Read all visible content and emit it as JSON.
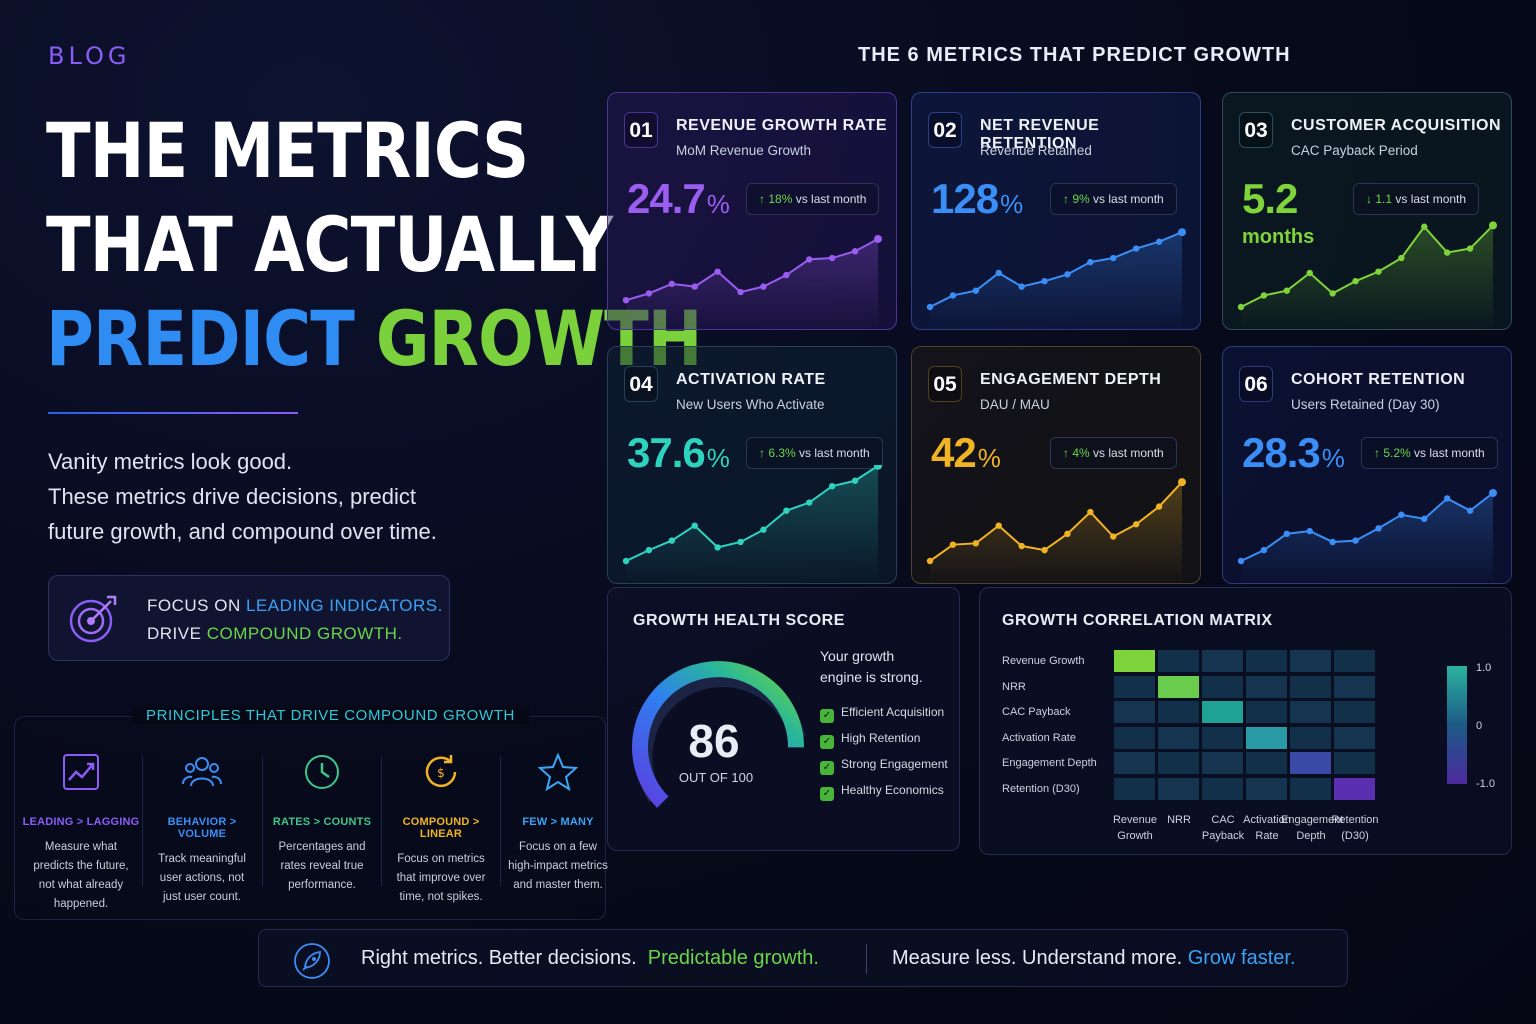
{
  "blog_label": "BLOG",
  "hero": {
    "line1": "THE METRICS",
    "line2": "THAT ACTUALLY",
    "line3a": "PREDICT",
    "line3b": "GROWTH"
  },
  "intro": {
    "line1": "Vanity metrics look good.",
    "line2": "These metrics drive decisions, predict",
    "line3": "future growth, and compound over time."
  },
  "focus": {
    "a1": "FOCUS ON ",
    "a2": "LEADING INDICATORS.",
    "b1": "DRIVE ",
    "b2": "COMPOUND GROWTH.",
    "icon": "target-icon"
  },
  "principles": {
    "title": "PRINCIPLES THAT DRIVE COMPOUND GROWTH",
    "items": [
      {
        "icon": "trend-up-icon",
        "heading": "LEADING > LAGGING",
        "color": "#8b5cf6",
        "l1": "Measure what",
        "l2": "predicts the future,",
        "l3": "not what already",
        "l4": "happened."
      },
      {
        "icon": "users-icon",
        "heading": "BEHAVIOR > VOLUME",
        "color": "#3b8ef5",
        "l1": "Track meaningful",
        "l2": "user actions, not",
        "l3": "just user count.",
        "l4": ""
      },
      {
        "icon": "clock-icon",
        "heading": "RATES > COUNTS",
        "color": "#3fc58a",
        "l1": "Percentages and",
        "l2": "rates reveal true",
        "l3": "performance.",
        "l4": ""
      },
      {
        "icon": "cycle-icon",
        "heading": "COMPOUND > LINEAR",
        "color": "#f0b323",
        "l1": "Focus on metrics",
        "l2": "that improve over",
        "l3": "time, not spikes.",
        "l4": ""
      },
      {
        "icon": "star-icon",
        "heading": "FEW > MANY",
        "color": "#3aa6f5",
        "l1": "Focus on a few",
        "l2": "high-impact metrics",
        "l3": "and master them.",
        "l4": ""
      }
    ]
  },
  "metrics_title": "THE 6 METRICS THAT PREDICT GROWTH",
  "metrics": [
    {
      "num": "01",
      "title": "REVENUE GROWTH RATE",
      "subtitle": "MoM Revenue Growth",
      "value": "24.7",
      "unit": "%",
      "unit2": "",
      "arrow": "↑",
      "delta": "18%",
      "delta_text": " vs last month",
      "color": "#9b5cf0",
      "spark": [
        0.1,
        0.2,
        0.34,
        0.3,
        0.52,
        0.22,
        0.3,
        0.47,
        0.7,
        0.72,
        0.82,
        1.0
      ]
    },
    {
      "num": "02",
      "title": "NET REVENUE RETENTION",
      "subtitle": "Revenue Retained",
      "value": "128",
      "unit": "%",
      "unit2": "",
      "arrow": "↑",
      "delta": "9%",
      "delta_text": " vs last month",
      "color": "#3b8ef5",
      "spark": [
        0.0,
        0.17,
        0.24,
        0.5,
        0.3,
        0.38,
        0.48,
        0.66,
        0.72,
        0.86,
        0.96,
        1.1
      ]
    },
    {
      "num": "03",
      "title": "CUSTOMER ACQUISITION",
      "subtitle": "CAC Payback Period",
      "value": "5.2",
      "unit": "",
      "unit2": "months",
      "arrow": "↓",
      "delta": "1.1",
      "delta_text": " vs last month",
      "color": "#7ed43a",
      "spark": [
        0.0,
        0.17,
        0.24,
        0.5,
        0.2,
        0.38,
        0.52,
        0.72,
        1.18,
        0.8,
        0.86,
        1.2
      ]
    },
    {
      "num": "04",
      "title": "ACTIVATION RATE",
      "subtitle": "New Users Who Activate",
      "value": "37.6",
      "unit": "%",
      "unit2": "",
      "arrow": "↑",
      "delta": "6.3%",
      "delta_text": " vs last month",
      "color": "#2ed3c0",
      "spark": [
        0.0,
        0.16,
        0.3,
        0.52,
        0.2,
        0.28,
        0.46,
        0.74,
        0.86,
        1.1,
        1.18,
        1.4
      ]
    },
    {
      "num": "05",
      "title": "ENGAGEMENT DEPTH",
      "subtitle": "DAU / MAU",
      "value": "42",
      "unit": "%",
      "unit2": "",
      "arrow": "↑",
      "delta": "4%",
      "delta_text": " vs last month",
      "color": "#f0b323",
      "spark": [
        0.0,
        0.24,
        0.26,
        0.52,
        0.22,
        0.16,
        0.4,
        0.72,
        0.36,
        0.54,
        0.8,
        1.16
      ]
    },
    {
      "num": "06",
      "title": "COHORT RETENTION",
      "subtitle": "Users Retained (Day 30)",
      "value": "28.3",
      "unit": "%",
      "unit2": "",
      "arrow": "↑",
      "delta": "5.2%",
      "delta_text": " vs last month",
      "color": "#3b8ef5",
      "spark": [
        0.0,
        0.16,
        0.4,
        0.44,
        0.28,
        0.3,
        0.48,
        0.68,
        0.62,
        0.92,
        0.74,
        1.0
      ]
    }
  ],
  "score": {
    "title": "GROWTH HEALTH SCORE",
    "value": "86",
    "value_num": 86,
    "max_label": "OUT OF 100",
    "msg1": "Your growth",
    "msg2": "engine is strong.",
    "checks": [
      "Efficient Acquisition",
      "High Retention",
      "Strong Engagement",
      "Healthy Economics"
    ]
  },
  "matrix": {
    "title": "GROWTH CORRELATION MATRIX",
    "rows": [
      "Revenue Growth",
      "NRR",
      "CAC Payback",
      "Activation Rate",
      "Engagement Depth",
      "Retention (D30)"
    ],
    "cols": [
      [
        "Revenue",
        "Growth"
      ],
      [
        "NRR",
        ""
      ],
      [
        "CAC",
        "Payback"
      ],
      [
        "Activation",
        "Rate"
      ],
      [
        "Engagement",
        "Depth"
      ],
      [
        "Retention",
        "(D30)"
      ]
    ],
    "scale_max": "1.0",
    "scale_mid": "0",
    "scale_min": "-1.0"
  },
  "footer": {
    "a": "Right metrics. Better decisions.",
    "b": "Predictable growth.",
    "c": "Measure less. Understand more.",
    "d": "Grow faster.",
    "icon": "rocket-icon"
  }
}
